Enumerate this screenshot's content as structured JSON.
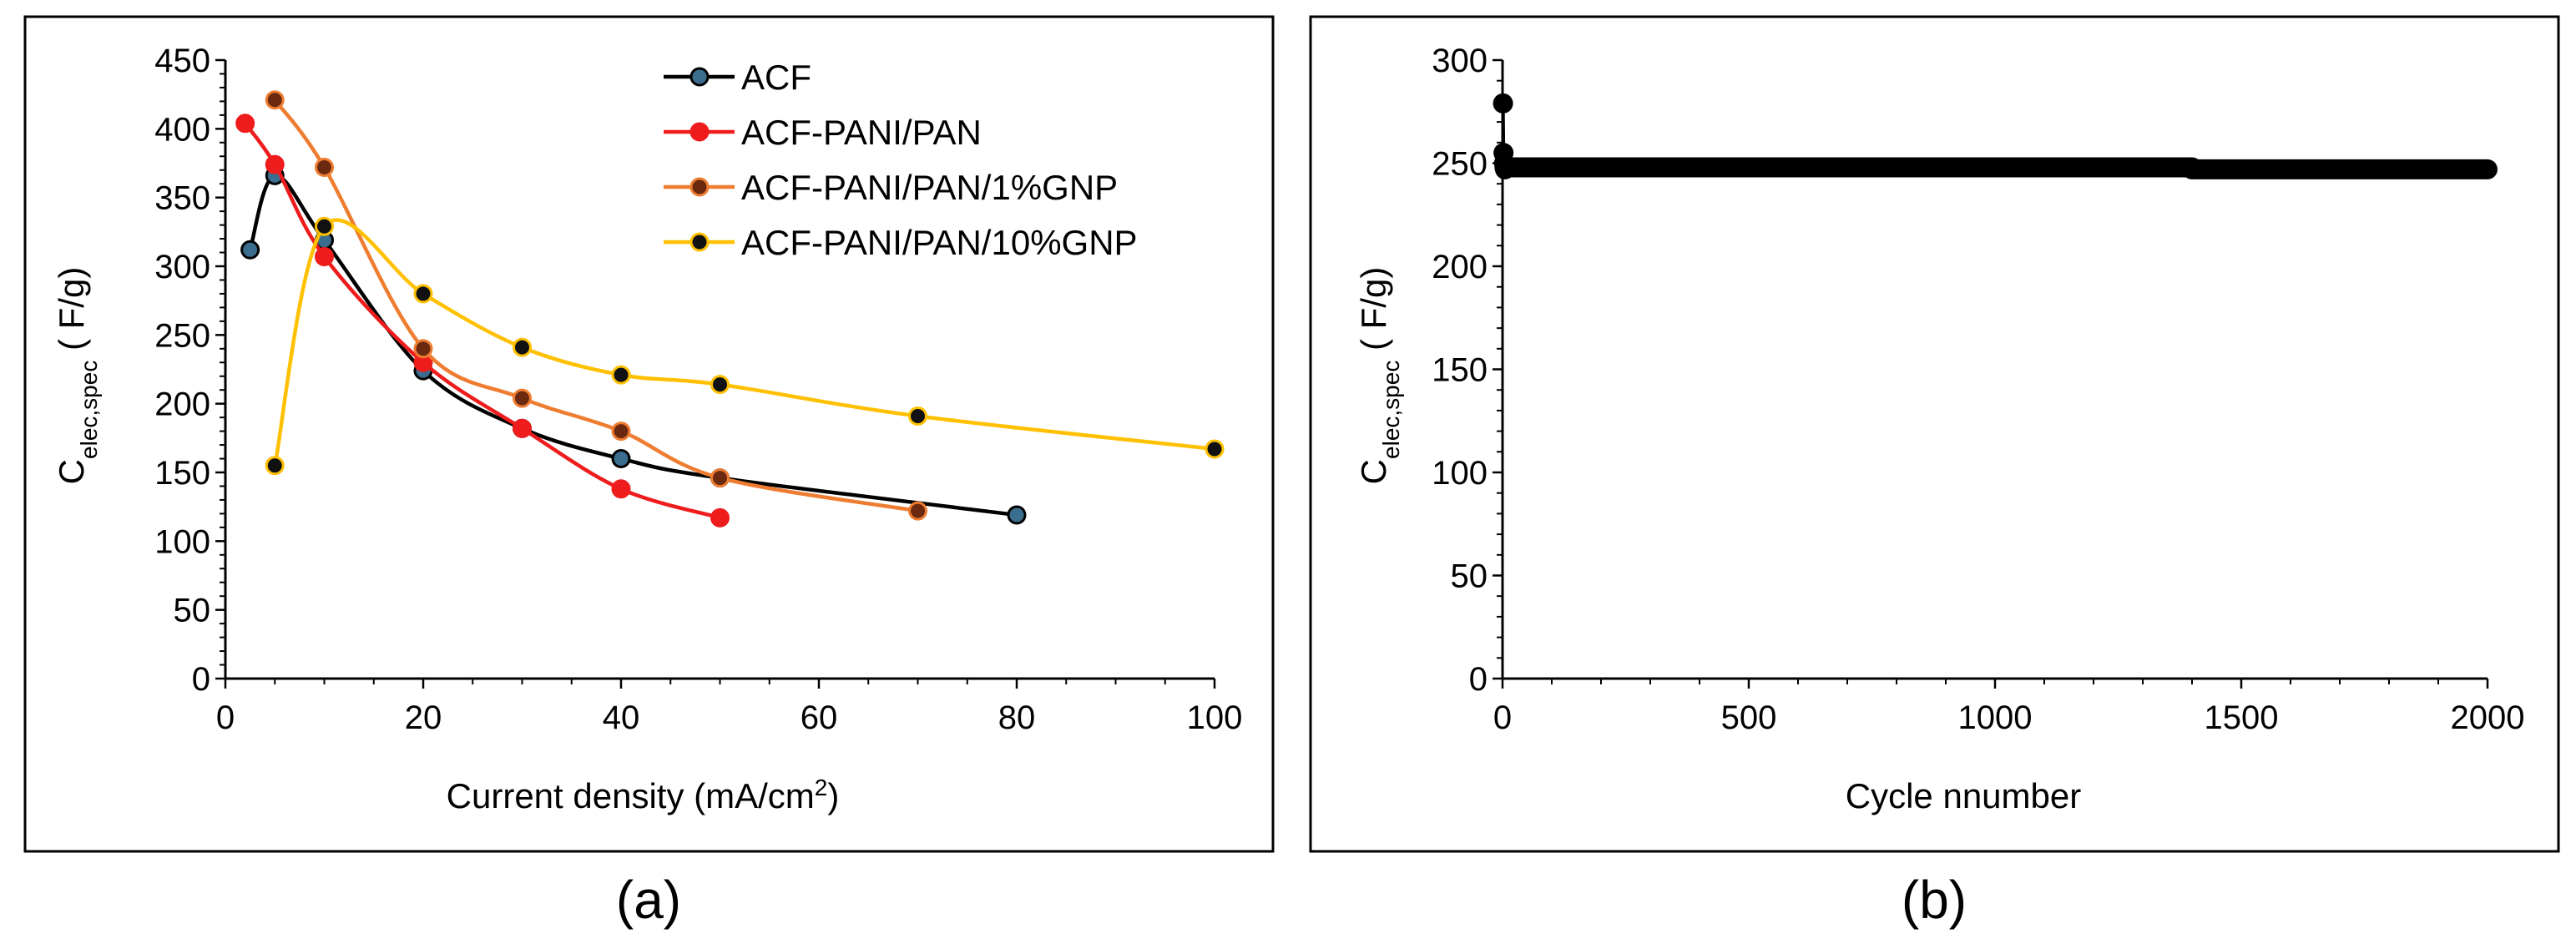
{
  "chart_data": [
    {
      "type": "line",
      "panel_label": "(a)",
      "xlabel": {
        "main": "Current density (mA/cm",
        "sup": "2",
        "tail": ")"
      },
      "ylabel": {
        "main": "C",
        "sub": "elec,spec",
        "tail": " ( F/g)"
      },
      "xlim": [
        0,
        100
      ],
      "ylim": [
        0,
        450
      ],
      "xticks": [
        0,
        20,
        40,
        60,
        80,
        100
      ],
      "yticks": [
        0,
        50,
        100,
        150,
        200,
        250,
        300,
        350,
        400,
        450
      ],
      "grid": false,
      "legend_position": "top-right",
      "smooth": true,
      "series": [
        {
          "name": "ACF",
          "color": "#000000",
          "marker_fill": "#3b6e8e",
          "x": [
            2.5,
            5,
            10,
            20,
            30,
            40,
            50,
            80
          ],
          "y": [
            312,
            366,
            319,
            224,
            182,
            160,
            146,
            119
          ]
        },
        {
          "name": "ACF-PANI/PAN",
          "color": "#ee1c1c",
          "marker_fill": "#ee1c1c",
          "x": [
            2,
            5,
            10,
            20,
            30,
            40,
            50
          ],
          "y": [
            404,
            374,
            307,
            230,
            182,
            138,
            117
          ]
        },
        {
          "name": "ACF-PANI/PAN/1%GNP",
          "color": "#ee7d31",
          "marker_fill": "#6b2a10",
          "x": [
            5,
            10,
            20,
            30,
            40,
            50,
            70
          ],
          "y": [
            421,
            372,
            240,
            204,
            180,
            146,
            122
          ]
        },
        {
          "name": "ACF-PANI/PAN/10%GNP",
          "color": "#ffc000",
          "marker_fill": "#111111",
          "x": [
            5,
            10,
            20,
            30,
            40,
            50,
            70,
            100
          ],
          "y": [
            155,
            329,
            280,
            241,
            221,
            214,
            191,
            167
          ]
        }
      ]
    },
    {
      "type": "scatter",
      "panel_label": "(b)",
      "xlabel": {
        "main": "Cycle nnumber",
        "sup": "",
        "tail": ""
      },
      "ylabel": {
        "main": "C",
        "sub": "elec,spec",
        "tail": " ( F/g)"
      },
      "xlim": [
        0,
        2000
      ],
      "ylim": [
        0,
        300
      ],
      "xticks": [
        0,
        500,
        1000,
        1500,
        2000
      ],
      "yticks": [
        0,
        50,
        100,
        150,
        200,
        250,
        300
      ],
      "grid": false,
      "series": [
        {
          "color": "#000000",
          "initial_points": {
            "x": [
              1,
              2,
              3,
              4,
              5,
              6,
              8,
              10,
              15,
              20
            ],
            "y": [
              279,
              255,
              250,
              248,
              247,
              248,
              248,
              248,
              248,
              248
            ]
          },
          "steady_segments": [
            {
              "x_start": 20,
              "x_end": 1400,
              "y": 248
            },
            {
              "x_start": 1400,
              "x_end": 2000,
              "y": 247
            }
          ]
        }
      ]
    }
  ]
}
